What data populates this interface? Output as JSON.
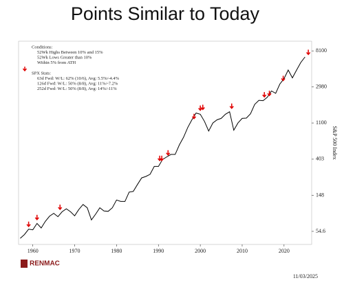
{
  "chart_data": {
    "type": "line",
    "title": "Points Similar to Today",
    "y_label": "S&P 500 Index",
    "annotations": [
      "Conditions:",
      "52Wk Highs Between 10% and 15%",
      "52Wk Lows Greater than 10%",
      "Within 5% from ATH",
      "SPX Stats:",
      "63d Fwd: W/L: 62% (10/6), Avg: 5.5%/-4.4%",
      "126d Fwd: W/L: 50% (8/8), Avg: 11%/-7.2%",
      "252d Fwd: W/L: 50% (8/8), Avg: 14%/-11%"
    ],
    "source": "RENMAC",
    "date": "11/03/2025",
    "log_y": true,
    "x": [
      1957,
      1958,
      1959,
      1960,
      1961,
      1962,
      1963,
      1964,
      1965,
      1966,
      1967,
      1968,
      1969,
      1970,
      1971,
      1972,
      1973,
      1974,
      1975,
      1976,
      1977,
      1978,
      1979,
      1980,
      1981,
      1982,
      1983,
      1984,
      1985,
      1986,
      1987,
      1988,
      1989,
      1990,
      1991,
      1992,
      1993,
      1994,
      1995,
      1996,
      1997,
      1998,
      1999,
      2000,
      2001,
      2002,
      2003,
      2004,
      2005,
      2006,
      2007,
      2008,
      2009,
      2010,
      2011,
      2012,
      2013,
      2014,
      2015,
      2016,
      2017,
      2018,
      2019,
      2020,
      2021,
      2022,
      2023,
      2024,
      2025
    ],
    "series": [
      {
        "name": "S&P 500 Index",
        "color": "#000000",
        "values": [
          45,
          50,
          58,
          57,
          68,
          60,
          72,
          83,
          90,
          82,
          94,
          102,
          94,
          84,
          100,
          115,
          105,
          75,
          88,
          105,
          96,
          95,
          105,
          130,
          125,
          125,
          162,
          165,
          200,
          240,
          250,
          265,
          330,
          330,
          400,
          430,
          460,
          460,
          600,
          740,
          970,
          1200,
          1450,
          1400,
          1150,
          880,
          1100,
          1200,
          1250,
          1400,
          1500,
          900,
          1100,
          1250,
          1260,
          1420,
          1840,
          2060,
          2040,
          2240,
          2670,
          2500,
          3230,
          3750,
          4770,
          3840,
          4770,
          5880,
          6850
        ]
      }
    ],
    "markers": {
      "color": "#e00000",
      "x": [
        1959,
        1961,
        1966.5,
        1990.3,
        1990.8,
        1992.3,
        1998.5,
        2000,
        2000.6,
        2007.5,
        2015.3,
        2016.5,
        2019.8,
        2025.8
      ],
      "values": [
        58,
        70,
        93,
        360,
        360,
        420,
        1150,
        1450,
        1480,
        1530,
        2100,
        2180,
        3300,
        6800
      ]
    },
    "xlim": [
      1956.6,
      2026.6
    ],
    "xticks": [
      1960,
      1970,
      1980,
      1990,
      2000,
      2010,
      2020
    ],
    "ylim": [
      38,
      10600
    ],
    "yticks": [
      54.6,
      148,
      403,
      1100,
      2980,
      8100
    ]
  }
}
